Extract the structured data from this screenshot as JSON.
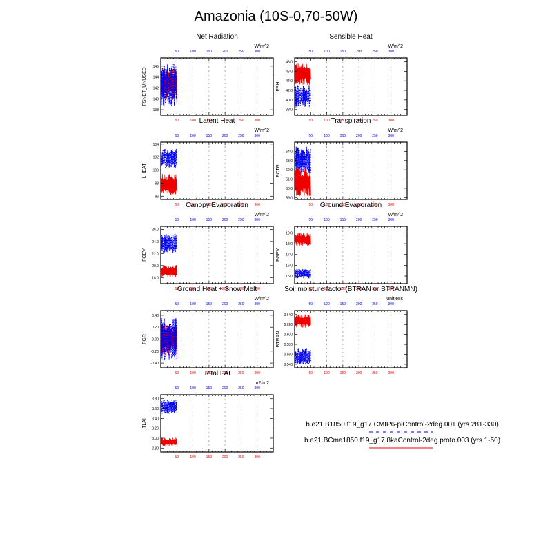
{
  "figure_title": "Amazonia (10S-0,70-50W)",
  "colors": {
    "red": "#ee0000",
    "blue": "#0000ee",
    "grid": "#999999"
  },
  "legend": {
    "entries": [
      {
        "label": "b.e21.B1850.f19_g17.CMIP6-piControl-2deg.001 (yrs 281-330)",
        "color": "#0000ee",
        "style": "dashed"
      },
      {
        "label": "b.e21.BCma1850.f19_g17.8kaControl-2deg.proto.003 (yrs 1-50)",
        "color": "#ee0000",
        "style": "solid"
      }
    ]
  },
  "chart_data": [
    {
      "type": "line",
      "title": "Net Radiation",
      "ylabel": "FSNET_UNUSED",
      "units": "W/m^2",
      "ylim": [
        137,
        147.5
      ],
      "yticks": [
        138,
        140,
        142,
        144,
        146
      ],
      "ytick_labels": [
        "138",
        "140",
        "142",
        "144",
        "146"
      ],
      "xlim": [
        0,
        350
      ],
      "x_top_ticks": [
        50,
        100,
        150,
        200,
        250,
        300
      ],
      "x_bottom_ticks": [
        50,
        100,
        150,
        200,
        250,
        300
      ],
      "grid_x": [
        100,
        150,
        200,
        250,
        300
      ],
      "series": [
        {
          "color": "red",
          "style": "solid",
          "x_start": 1,
          "x_end": 50,
          "range": [
            139.2,
            146.2
          ],
          "center": 142.8
        },
        {
          "color": "blue",
          "style": "dotted",
          "x_start": 1,
          "x_end": 50,
          "range": [
            138.2,
            146.8
          ],
          "center": 142.5
        }
      ]
    },
    {
      "type": "line",
      "title": "Sensible Heat",
      "ylabel": "FSH",
      "units": "W/m^2",
      "ylim": [
        36.8,
        48.8
      ],
      "yticks": [
        38,
        40,
        42,
        44,
        46,
        48
      ],
      "ytick_labels": [
        "38.0",
        "40.0",
        "42.0",
        "44.0",
        "46.0",
        "48.0"
      ],
      "xlim": [
        0,
        350
      ],
      "x_top_ticks": [
        50,
        100,
        150,
        200,
        250,
        300
      ],
      "x_bottom_ticks": [
        50,
        100,
        150,
        200,
        250,
        300
      ],
      "grid_x": [
        100,
        150,
        200,
        250,
        300
      ],
      "series": [
        {
          "color": "red",
          "style": "solid",
          "x_start": 1,
          "x_end": 50,
          "range": [
            43.2,
            48.4
          ],
          "center": 45.5
        },
        {
          "color": "blue",
          "style": "dotted",
          "x_start": 1,
          "x_end": 50,
          "range": [
            38.0,
            43.2
          ],
          "center": 40.8
        }
      ]
    },
    {
      "type": "line",
      "title": "Latent Heat",
      "ylabel": "LHEAT",
      "units": "W/m^2",
      "ylim": [
        95.5,
        104.3
      ],
      "yticks": [
        96,
        98,
        100,
        102,
        104
      ],
      "ytick_labels": [
        "96",
        "98",
        "100",
        "102",
        "104"
      ],
      "xlim": [
        0,
        350
      ],
      "x_top_ticks": [
        50,
        100,
        150,
        200,
        250,
        300
      ],
      "x_bottom_ticks": [
        50,
        100,
        150,
        200,
        250,
        300
      ],
      "grid_x": [
        100,
        150,
        200,
        250,
        300
      ],
      "series": [
        {
          "color": "blue",
          "style": "dotted",
          "x_start": 1,
          "x_end": 50,
          "range": [
            100.2,
            103.6
          ],
          "center": 101.8
        },
        {
          "color": "red",
          "style": "solid",
          "x_start": 1,
          "x_end": 50,
          "range": [
            96.0,
            99.6
          ],
          "center": 97.8
        }
      ]
    },
    {
      "type": "line",
      "title": "Transpiration",
      "ylabel": "FCTR",
      "units": "W/m^2",
      "ylim": [
        58.8,
        65.0
      ],
      "yticks": [
        59,
        60,
        61,
        62,
        63,
        64
      ],
      "ytick_labels": [
        "59.0",
        "60.0",
        "61.0",
        "62.0",
        "63.0",
        "64.0"
      ],
      "xlim": [
        0,
        350
      ],
      "x_top_ticks": [
        50,
        100,
        150,
        200,
        250,
        300
      ],
      "x_bottom_ticks": [
        50,
        100,
        150,
        200,
        250,
        300
      ],
      "grid_x": [
        100,
        150,
        200,
        250,
        300
      ],
      "series": [
        {
          "color": "blue",
          "style": "dotted",
          "x_start": 1,
          "x_end": 50,
          "range": [
            61.2,
            64.6
          ],
          "center": 63.0
        },
        {
          "color": "red",
          "style": "solid",
          "x_start": 1,
          "x_end": 50,
          "range": [
            59.2,
            62.8
          ],
          "center": 60.6
        }
      ]
    },
    {
      "type": "line",
      "title": "Canopy Evaporation",
      "ylabel": "FCEV",
      "units": "W/m^2",
      "ylim": [
        17.0,
        26.5
      ],
      "yticks": [
        18,
        20,
        22,
        24,
        26
      ],
      "ytick_labels": [
        "18.0",
        "20.0",
        "22.0",
        "24.0",
        "26.0"
      ],
      "xlim": [
        0,
        350
      ],
      "x_top_ticks": [
        50,
        100,
        150,
        200,
        250,
        300
      ],
      "x_bottom_ticks": [
        50,
        100,
        150,
        200,
        250,
        300
      ],
      "grid_x": [
        100,
        150,
        200,
        250,
        300
      ],
      "series": [
        {
          "color": "blue",
          "style": "dotted",
          "x_start": 1,
          "x_end": 50,
          "range": [
            22.0,
            25.6
          ],
          "center": 23.6
        },
        {
          "color": "red",
          "style": "solid",
          "x_start": 1,
          "x_end": 50,
          "range": [
            18.0,
            20.4
          ],
          "center": 19.0
        }
      ]
    },
    {
      "type": "line",
      "title": "Ground Evaporation",
      "ylabel": "FGEV",
      "units": "W/m^2",
      "ylim": [
        14.3,
        19.6
      ],
      "yticks": [
        15,
        16,
        17,
        18,
        19
      ],
      "ytick_labels": [
        "15.0",
        "16.0",
        "17.0",
        "18.0",
        "19.0"
      ],
      "xlim": [
        0,
        350
      ],
      "x_top_ticks": [
        50,
        100,
        150,
        200,
        250,
        300
      ],
      "x_bottom_ticks": [
        50,
        100,
        150,
        200,
        250,
        300
      ],
      "grid_x": [
        100,
        150,
        200,
        250,
        300
      ],
      "series": [
        {
          "color": "red",
          "style": "solid",
          "x_start": 1,
          "x_end": 50,
          "range": [
            17.8,
            19.2
          ],
          "center": 18.4
        },
        {
          "color": "blue",
          "style": "dotted",
          "x_start": 1,
          "x_end": 50,
          "range": [
            14.8,
            15.8
          ],
          "center": 15.2
        }
      ]
    },
    {
      "type": "line",
      "title": "Ground Heat + Snow Melt",
      "ylabel": "FGR",
      "units": "W/m^2",
      "ylim": [
        -0.48,
        0.48
      ],
      "yticks": [
        -0.4,
        -0.2,
        0.0,
        0.2,
        0.4
      ],
      "ytick_labels": [
        "-0.40",
        "-0.20",
        "0.00",
        "0.20",
        "0.40"
      ],
      "xlim": [
        0,
        350
      ],
      "x_top_ticks": [
        50,
        100,
        150,
        200,
        250,
        300
      ],
      "x_bottom_ticks": [
        50,
        100,
        150,
        200,
        250,
        300
      ],
      "grid_x": [
        100,
        150,
        200,
        250,
        300
      ],
      "series": [
        {
          "color": "red",
          "style": "solid",
          "x_start": 1,
          "x_end": 50,
          "range": [
            -0.3,
            0.3
          ],
          "center": 0.0
        },
        {
          "color": "blue",
          "style": "dotted",
          "x_start": 1,
          "x_end": 50,
          "range": [
            -0.44,
            0.36
          ],
          "center": 0.0
        }
      ]
    },
    {
      "type": "line",
      "title": "Soil moisture factor (BTRAN or BTRANMN)",
      "ylabel": "BTRAN",
      "units": "unitless",
      "ylim": [
        0.533,
        0.648
      ],
      "yticks": [
        0.54,
        0.56,
        0.58,
        0.6,
        0.62,
        0.64
      ],
      "ytick_labels": [
        "0.540",
        "0.560",
        "0.580",
        "0.600",
        "0.620",
        "0.640"
      ],
      "xlim": [
        0,
        350
      ],
      "x_top_ticks": [
        50,
        100,
        150,
        200,
        250,
        300
      ],
      "x_bottom_ticks": [
        50,
        100,
        150,
        200,
        250,
        300
      ],
      "grid_x": [
        100,
        150,
        200,
        250,
        300
      ],
      "series": [
        {
          "color": "red",
          "style": "solid",
          "x_start": 1,
          "x_end": 50,
          "range": [
            0.612,
            0.643
          ],
          "center": 0.627
        },
        {
          "color": "blue",
          "style": "dotted",
          "x_start": 1,
          "x_end": 50,
          "range": [
            0.54,
            0.58
          ],
          "center": 0.555
        }
      ]
    },
    {
      "type": "line",
      "title": "Total LAI",
      "ylabel": "TLAI",
      "units": "m2/m2",
      "ylim": [
        2.72,
        3.88
      ],
      "yticks": [
        2.8,
        3.0,
        3.2,
        3.4,
        3.6,
        3.8
      ],
      "ytick_labels": [
        "2.80",
        "3.00",
        "3.20",
        "3.40",
        "3.60",
        "3.80"
      ],
      "xlim": [
        0,
        350
      ],
      "x_top_ticks": [
        50,
        100,
        150,
        200,
        250,
        300
      ],
      "x_bottom_ticks": [
        50,
        100,
        150,
        200,
        250,
        300
      ],
      "grid_x": [
        100,
        150,
        200,
        250,
        300
      ],
      "series": [
        {
          "color": "blue",
          "style": "dotted",
          "x_start": 1,
          "x_end": 50,
          "range": [
            3.48,
            3.82
          ],
          "center": 3.64
        },
        {
          "color": "red",
          "style": "solid",
          "x_start": 1,
          "x_end": 50,
          "range": [
            2.82,
            3.02
          ],
          "center": 2.92
        }
      ]
    }
  ]
}
